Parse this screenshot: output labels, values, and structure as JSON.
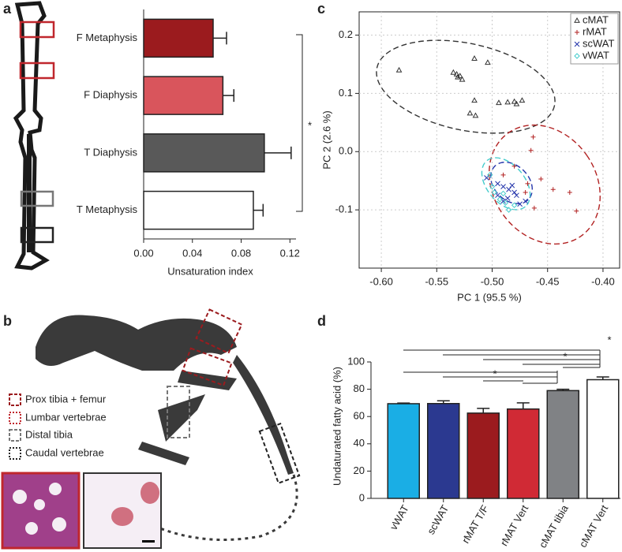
{
  "panel_labels": [
    "a",
    "b",
    "c",
    "d"
  ],
  "chart_data": [
    {
      "type": "bar",
      "horizontal": true,
      "categories": [
        "F Metaphysis",
        "F Diaphysis",
        "T Diaphysis",
        "T Metaphysis"
      ],
      "values": [
        0.057,
        0.065,
        0.099,
        0.09
      ],
      "errors": [
        0.011,
        0.009,
        0.022,
        0.008
      ],
      "colors": [
        "#9b1b1e",
        "#d9555c",
        "#595959",
        "#ffffff"
      ],
      "xlim": [
        0,
        0.125
      ],
      "xticks": [
        {
          "value": 0,
          "label": "0.00"
        },
        {
          "value": 0.04,
          "label": "0.04"
        },
        {
          "value": 0.08,
          "label": "0.08"
        },
        {
          "value": 0.12,
          "label": "0.12"
        }
      ],
      "xlabel": "Unsaturation index",
      "annotation": "*"
    },
    {
      "type": "scatter",
      "xlabel": "PC 1 (95.5 %)",
      "ylabel": "PC 2 (2.6 %)",
      "grid": true,
      "legend": "top-right",
      "xlim": [
        -0.62,
        -0.385
      ],
      "ylim": [
        -0.2,
        0.24
      ],
      "xticks": [
        {
          "value": -0.6,
          "label": "-0.60"
        },
        -0.55,
        {
          "value": -0.5,
          "label": "-0.50"
        },
        -0.45,
        {
          "value": -0.4,
          "label": "-0.40"
        }
      ],
      "yticks": [
        -0.1,
        {
          "value": 0,
          "label": "0.0"
        },
        0.1,
        0.2
      ],
      "series": [
        {
          "name": "cMAT",
          "color": "#333333",
          "marker": "triangle",
          "x": [
            -0.584,
            -0.535,
            -0.532,
            -0.531,
            -0.529,
            -0.527,
            -0.516,
            -0.504,
            -0.516,
            -0.52,
            -0.515,
            -0.494,
            -0.486,
            -0.478,
            -0.473,
            -0.48
          ],
          "values": [
            0.14,
            0.136,
            0.133,
            0.128,
            0.13,
            0.124,
            0.16,
            0.153,
            0.088,
            0.066,
            0.062,
            0.084,
            0.085,
            0.082,
            0.088,
            0.086
          ]
        },
        {
          "name": "rMAT",
          "color": "#b22222",
          "marker": "plus",
          "x": [
            -0.463,
            -0.465,
            -0.48,
            -0.456,
            -0.468,
            -0.445,
            -0.43,
            -0.424,
            -0.462,
            -0.49,
            -0.47
          ],
          "values": [
            0.025,
            0.002,
            -0.025,
            -0.047,
            -0.055,
            -0.065,
            -0.07,
            -0.102,
            -0.097,
            -0.04,
            -0.07
          ]
        },
        {
          "name": "scWAT",
          "color": "#2233aa",
          "marker": "x",
          "x": [
            -0.505,
            -0.495,
            -0.49,
            -0.485,
            -0.48,
            -0.478,
            -0.486,
            -0.49,
            -0.475,
            -0.47,
            -0.495,
            -0.482
          ],
          "values": [
            -0.045,
            -0.055,
            -0.06,
            -0.065,
            -0.07,
            -0.075,
            -0.08,
            -0.085,
            -0.09,
            -0.085,
            -0.075,
            -0.058
          ]
        },
        {
          "name": "vWAT",
          "color": "#44cccc",
          "marker": "diamond",
          "x": [
            -0.502,
            -0.498,
            -0.493,
            -0.488,
            -0.48,
            -0.49,
            -0.485,
            -0.5
          ],
          "values": [
            -0.04,
            -0.07,
            -0.082,
            -0.088,
            -0.092,
            -0.072,
            -0.1,
            -0.06
          ]
        }
      ]
    },
    {
      "type": "bar",
      "categories": [
        "vWAT",
        "scWAT",
        "rMAT T/F",
        "rMAT Vert",
        "cMAT tibia",
        "cMAT Vert"
      ],
      "values": [
        69.4,
        69.5,
        62.5,
        65.5,
        79,
        87
      ],
      "errors": [
        0.5,
        2,
        3.5,
        4.5,
        1,
        2
      ],
      "colors": [
        "#1aaee5",
        "#2b3990",
        "#9b1b1e",
        "#d02a35",
        "#808285",
        "#ffffff"
      ],
      "ylabel": "Undaturated fatty acid (%)",
      "ylim": [
        0,
        100
      ],
      "yticks": [
        0,
        20,
        40,
        60,
        80,
        100
      ],
      "annotations": [
        "*",
        "*",
        "*"
      ]
    }
  ],
  "figure_b": {
    "legend": [
      "Prox tibia + femur",
      "Lumbar vertebrae",
      "Distal tibia",
      "Caudal vertebrae"
    ]
  }
}
